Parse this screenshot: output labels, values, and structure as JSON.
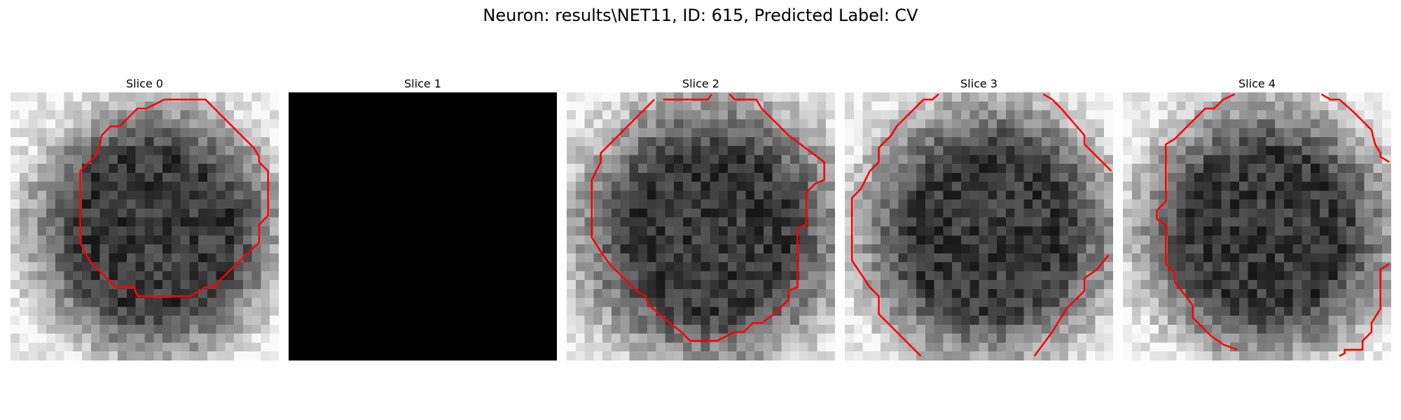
{
  "figure": {
    "title": "Neuron: results\\NET11, ID: 615, Predicted Label: CV"
  },
  "panels": [
    {
      "title": "Slice 0",
      "blank": false,
      "seed": 11,
      "center_dark": true,
      "edge_bright": 0.55
    },
    {
      "title": "Slice 1",
      "blank": true
    },
    {
      "title": "Slice 2",
      "blank": false,
      "seed": 23,
      "center_dark": true,
      "edge_bright": 0.35
    },
    {
      "title": "Slice 3",
      "blank": false,
      "seed": 37,
      "center_dark": true,
      "edge_bright": 0.45
    },
    {
      "title": "Slice 4",
      "blank": false,
      "seed": 53,
      "center_dark": true,
      "edge_bright": 0.5
    }
  ],
  "colors": {
    "contour": "#ff0000",
    "background": "#ffffff",
    "blank_slice": "#000000"
  },
  "grid_size": 30
}
